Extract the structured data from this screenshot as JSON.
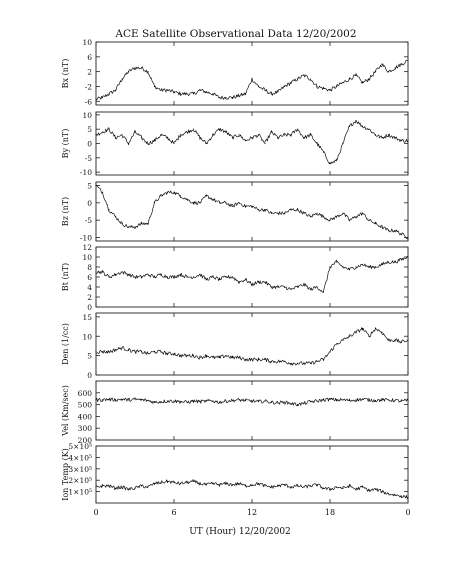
{
  "title": "ACE Satellite Observational Data   12/20/2002",
  "xlabel": "UT (Hour)   12/20/2002",
  "x_ticks": [
    "0",
    "6",
    "12",
    "18",
    "0"
  ],
  "chart_data": [
    {
      "type": "line",
      "ylabel": "Bx (nT)",
      "ylim": [
        -7,
        10
      ],
      "y_ticks": [
        -6,
        -2,
        2,
        6,
        10
      ],
      "x": [
        0,
        0.5,
        1,
        1.5,
        2,
        2.5,
        3,
        3.5,
        4,
        4.5,
        5,
        5.5,
        6,
        6.5,
        7,
        7.5,
        8,
        8.5,
        9,
        9.5,
        10,
        10.5,
        11,
        11.5,
        12,
        12.5,
        13,
        13.5,
        14,
        14.5,
        15,
        15.5,
        16,
        16.5,
        17,
        17.5,
        18,
        18.5,
        19,
        19.5,
        20,
        20.5,
        21,
        21.5,
        22,
        22.5,
        23,
        23.5,
        24
      ],
      "values": [
        -5.5,
        -5,
        -4,
        -3,
        0,
        2,
        3,
        3,
        2,
        -2,
        -3,
        -3,
        -3.5,
        -4,
        -4,
        -4,
        -3,
        -3.5,
        -4,
        -5,
        -5,
        -5,
        -4.5,
        -4,
        0,
        -2,
        -3,
        -4,
        -3.5,
        -2,
        -1,
        0,
        1,
        0,
        -2,
        -2.5,
        -3,
        -2,
        -1,
        0,
        1,
        -1,
        0,
        2,
        4,
        2,
        3,
        4,
        5
      ]
    },
    {
      "type": "line",
      "ylabel": "By (nT)",
      "ylim": [
        -11,
        11
      ],
      "y_ticks": [
        -10,
        -5,
        0,
        5,
        10
      ],
      "x": [
        0,
        0.5,
        1,
        1.5,
        2,
        2.5,
        3,
        3.5,
        4,
        4.5,
        5,
        5.5,
        6,
        6.5,
        7,
        7.5,
        8,
        8.5,
        9,
        9.5,
        10,
        10.5,
        11,
        11.5,
        12,
        12.5,
        13,
        13.5,
        14,
        14.5,
        15,
        15.5,
        16,
        16.5,
        17,
        17.5,
        18,
        18.5,
        19,
        19.5,
        20,
        20.5,
        21,
        21.5,
        22,
        22.5,
        23,
        23.5,
        24
      ],
      "values": [
        3,
        4,
        5,
        2,
        3,
        0,
        4,
        2,
        0,
        1,
        3,
        2,
        0,
        3,
        4,
        5,
        2,
        0,
        3,
        5,
        4,
        2,
        3,
        1,
        2,
        3,
        0,
        4,
        2,
        3,
        3,
        5,
        2,
        3,
        0,
        -3,
        -7,
        -6,
        0,
        6,
        8,
        6,
        5,
        3,
        2,
        3,
        2,
        1,
        1
      ]
    },
    {
      "type": "line",
      "ylabel": "Bz (nT)",
      "ylim": [
        -11,
        6
      ],
      "y_ticks": [
        -10,
        -5,
        0,
        5
      ],
      "x": [
        0,
        0.5,
        1,
        1.5,
        2,
        2.5,
        3,
        3.5,
        4,
        4.5,
        5,
        5.5,
        6,
        6.5,
        7,
        7.5,
        8,
        8.5,
        9,
        9.5,
        10,
        10.5,
        11,
        11.5,
        12,
        12.5,
        13,
        13.5,
        14,
        14.5,
        15,
        15.5,
        16,
        16.5,
        17,
        17.5,
        18,
        18.5,
        19,
        19.5,
        20,
        20.5,
        21,
        21.5,
        22,
        22.5,
        23,
        23.5,
        24
      ],
      "values": [
        5,
        3,
        -2,
        -4,
        -6,
        -7,
        -7,
        -6,
        -6,
        0,
        2,
        3,
        3,
        2,
        1,
        0,
        0,
        2,
        1,
        0,
        0,
        -1,
        0,
        -1,
        -1,
        -2,
        -2,
        -3,
        -3,
        -3,
        -2,
        -2,
        -3,
        -4,
        -3,
        -4,
        -5,
        -4,
        -3,
        -5,
        -4,
        -3,
        -5,
        -6,
        -7,
        -8,
        -8,
        -9,
        -10
      ]
    },
    {
      "type": "line",
      "ylabel": "Bt (nT)",
      "ylim": [
        0,
        12
      ],
      "y_ticks": [
        0,
        2,
        4,
        6,
        8,
        10,
        12
      ],
      "x": [
        0,
        0.5,
        1,
        1.5,
        2,
        2.5,
        3,
        3.5,
        4,
        4.5,
        5,
        5.5,
        6,
        6.5,
        7,
        7.5,
        8,
        8.5,
        9,
        9.5,
        10,
        10.5,
        11,
        11.5,
        12,
        12.5,
        13,
        13.5,
        14,
        14.5,
        15,
        15.5,
        16,
        16.5,
        17,
        17.5,
        18,
        18.5,
        19,
        19.5,
        20,
        20.5,
        21,
        21.5,
        22,
        22.5,
        23,
        23.5,
        24
      ],
      "values": [
        7,
        7,
        6,
        6.5,
        7,
        6.5,
        6,
        6,
        6.5,
        6,
        6.5,
        6,
        6,
        6.5,
        6,
        6,
        6.5,
        5.5,
        6,
        5.5,
        6,
        6,
        5,
        5.5,
        4.5,
        5,
        5,
        4,
        4,
        4,
        3.5,
        4,
        4.5,
        3.5,
        4,
        3,
        8,
        9,
        8,
        7.5,
        8,
        8.5,
        8,
        8,
        8.5,
        9,
        9,
        9.5,
        10
      ]
    },
    {
      "type": "line",
      "ylabel": "Den (1/cc)",
      "ylim": [
        0,
        16
      ],
      "y_ticks": [
        0,
        5,
        10,
        15
      ],
      "x": [
        0,
        0.5,
        1,
        1.5,
        2,
        2.5,
        3,
        3.5,
        4,
        4.5,
        5,
        5.5,
        6,
        6.5,
        7,
        7.5,
        8,
        8.5,
        9,
        9.5,
        10,
        10.5,
        11,
        11.5,
        12,
        12.5,
        13,
        13.5,
        14,
        14.5,
        15,
        15.5,
        16,
        16.5,
        17,
        17.5,
        18,
        18.5,
        19,
        19.5,
        20,
        20.5,
        21,
        21.5,
        22,
        22.5,
        23,
        23.5,
        24
      ],
      "values": [
        6,
        6,
        6,
        6.5,
        7,
        6.5,
        6,
        6,
        5.5,
        6,
        6,
        5.5,
        5.5,
        5,
        5,
        5,
        4.5,
        5,
        4.5,
        4.5,
        5,
        4.5,
        4.5,
        4,
        4,
        4,
        4,
        3.5,
        3.5,
        3.5,
        3,
        3,
        3,
        3,
        3.5,
        4,
        6,
        8,
        9,
        10,
        11,
        12,
        10,
        12,
        11,
        9,
        9,
        8.5,
        9
      ]
    },
    {
      "type": "line",
      "ylabel": "Vel (Km/sec)",
      "ylim": [
        200,
        700
      ],
      "y_ticks": [
        200,
        300,
        400,
        500,
        600
      ],
      "x": [
        0,
        0.5,
        1,
        1.5,
        2,
        2.5,
        3,
        3.5,
        4,
        4.5,
        5,
        5.5,
        6,
        6.5,
        7,
        7.5,
        8,
        8.5,
        9,
        9.5,
        10,
        10.5,
        11,
        11.5,
        12,
        12.5,
        13,
        13.5,
        14,
        14.5,
        15,
        15.5,
        16,
        16.5,
        17,
        17.5,
        18,
        18.5,
        19,
        19.5,
        20,
        20.5,
        21,
        21.5,
        22,
        22.5,
        23,
        23.5,
        24
      ],
      "values": [
        540,
        540,
        545,
        540,
        545,
        540,
        545,
        540,
        535,
        520,
        525,
        530,
        530,
        525,
        520,
        530,
        525,
        530,
        530,
        520,
        530,
        535,
        540,
        535,
        530,
        525,
        530,
        520,
        515,
        520,
        510,
        500,
        510,
        525,
        530,
        540,
        545,
        540,
        540,
        535,
        540,
        545,
        540,
        535,
        540,
        540,
        535,
        530,
        535
      ]
    },
    {
      "type": "line",
      "ylabel": "Ion Temp (K)",
      "ylim": [
        0,
        500000
      ],
      "y_ticks": [
        "1×10⁵",
        "2×10⁵",
        "3×10⁵",
        "4×10⁵",
        "5×10⁵"
      ],
      "x": [
        0,
        0.5,
        1,
        1.5,
        2,
        2.5,
        3,
        3.5,
        4,
        4.5,
        5,
        5.5,
        6,
        6.5,
        7,
        7.5,
        8,
        8.5,
        9,
        9.5,
        10,
        10.5,
        11,
        11.5,
        12,
        12.5,
        13,
        13.5,
        14,
        14.5,
        15,
        15.5,
        16,
        16.5,
        17,
        17.5,
        18,
        18.5,
        19,
        19.5,
        20,
        20.5,
        21,
        21.5,
        22,
        22.5,
        23,
        23.5,
        24
      ],
      "values": [
        140000,
        150000,
        150000,
        130000,
        140000,
        120000,
        130000,
        150000,
        140000,
        170000,
        180000,
        190000,
        180000,
        170000,
        180000,
        190000,
        170000,
        160000,
        170000,
        160000,
        170000,
        160000,
        170000,
        150000,
        160000,
        170000,
        150000,
        140000,
        150000,
        160000,
        140000,
        150000,
        140000,
        150000,
        160000,
        130000,
        120000,
        140000,
        130000,
        150000,
        120000,
        140000,
        110000,
        120000,
        100000,
        80000,
        70000,
        60000,
        50000
      ]
    }
  ]
}
